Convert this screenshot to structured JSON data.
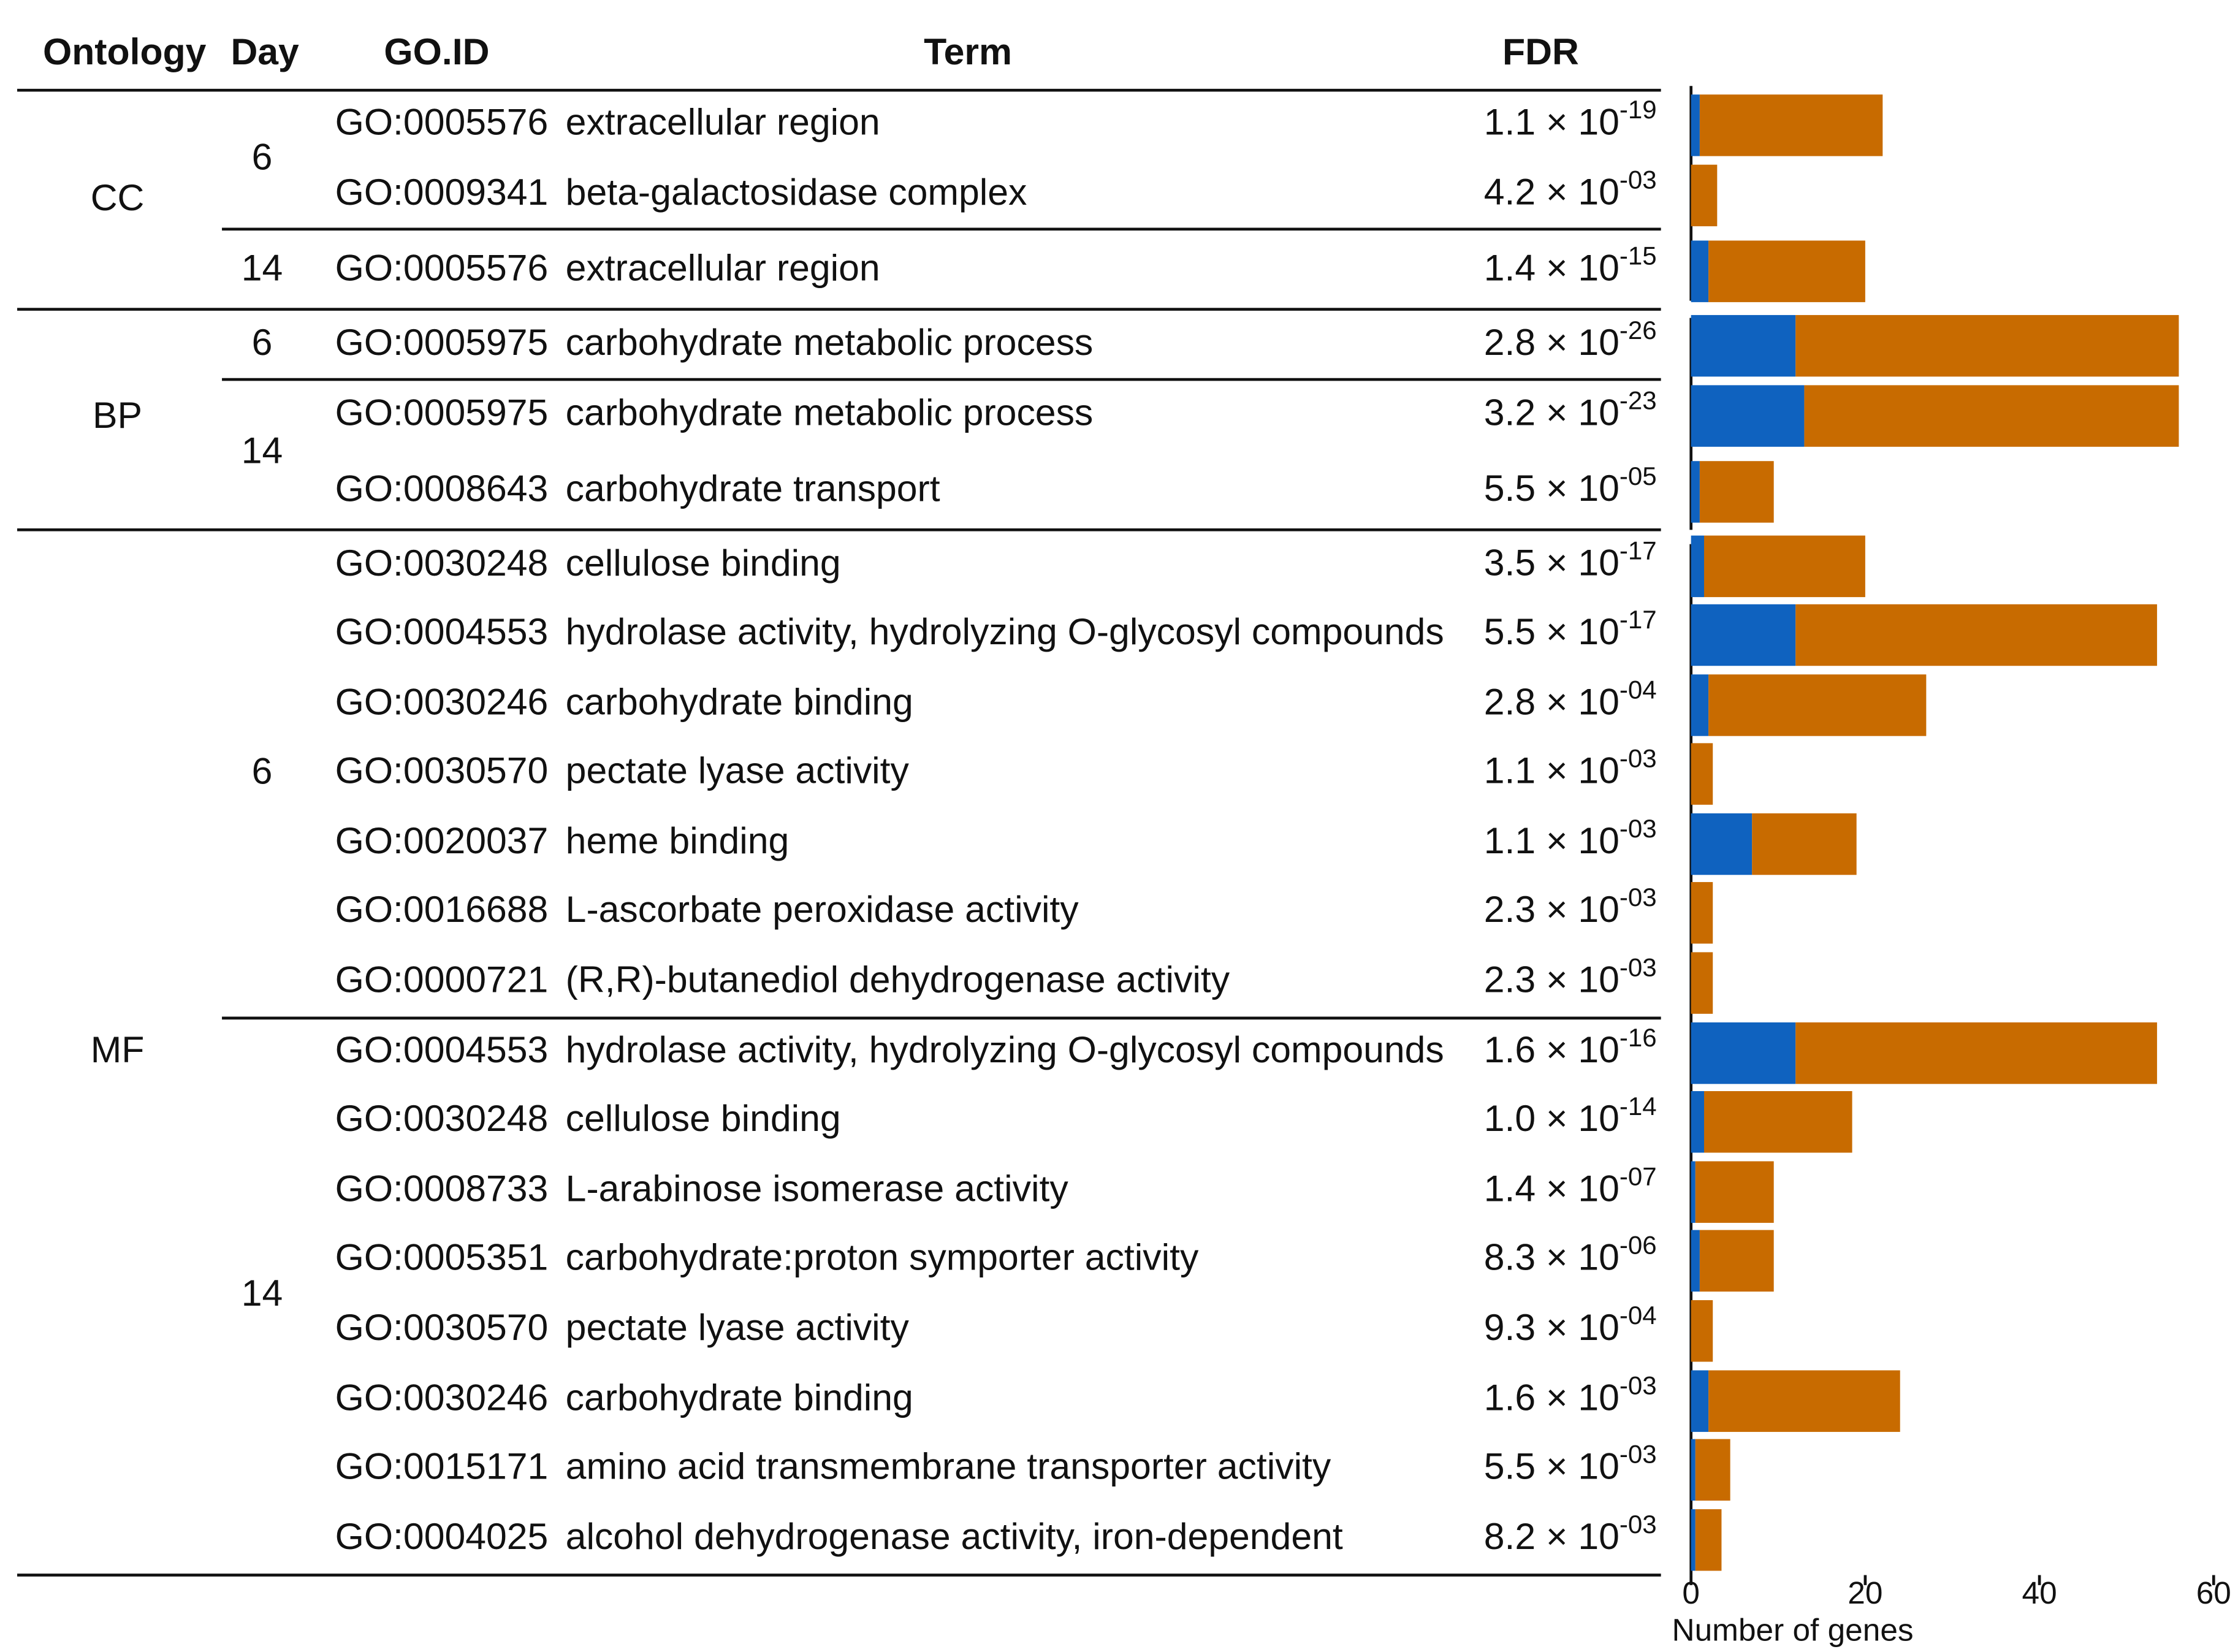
{
  "table": {
    "columns": [
      "Ontology",
      "Day",
      "GO.ID",
      "Term",
      "FDR"
    ],
    "groups": [
      {
        "ontology": "CC",
        "days": [
          {
            "day": "6",
            "rows": [
              [
                "GO:0005576",
                "extracellular region",
                "1.1 × 10",
                "-19"
              ],
              [
                "GO:0009341",
                "beta-galactosidase complex",
                "4.2 × 10",
                "-03"
              ]
            ]
          },
          {
            "day": "14",
            "rows": [
              [
                "GO:0005576",
                "extracellular region",
                "1.4 × 10",
                "-15"
              ]
            ]
          }
        ]
      },
      {
        "ontology": "BP",
        "days": [
          {
            "day": "6",
            "rows": [
              [
                "GO:0005975",
                "carbohydrate metabolic process",
                "2.8 × 10",
                "-26"
              ]
            ]
          },
          {
            "day": "14",
            "rows": [
              [
                "GO:0005975",
                "carbohydrate metabolic process",
                "3.2 × 10",
                "-23"
              ],
              [
                "GO:0008643",
                "carbohydrate transport",
                "5.5 × 10",
                "-05"
              ]
            ]
          }
        ]
      },
      {
        "ontology": "MF",
        "days": [
          {
            "day": "6",
            "rows": [
              [
                "GO:0030248",
                "cellulose binding",
                "3.5 × 10",
                "-17"
              ],
              [
                "GO:0004553",
                "hydrolase activity, hydrolyzing O-glycosyl compounds",
                "5.5 × 10",
                "-17"
              ],
              [
                "GO:0030246",
                "carbohydrate binding",
                "2.8 × 10",
                "-04"
              ],
              [
                "GO:0030570",
                "pectate lyase activity",
                "1.1 × 10",
                "-03"
              ],
              [
                "GO:0020037",
                "heme binding",
                "1.1 × 10",
                "-03"
              ],
              [
                "GO:0016688",
                "L-ascorbate peroxidase activity",
                "2.3 × 10",
                "-03"
              ],
              [
                "GO:0000721",
                "(R,R)-butanediol dehydrogenase activity",
                "2.3 × 10",
                "-03"
              ]
            ]
          },
          {
            "day": "14",
            "rows": [
              [
                "GO:0004553",
                "hydrolase activity, hydrolyzing O-glycosyl compounds",
                "1.6 × 10",
                "-16"
              ],
              [
                "GO:0030248",
                "cellulose binding",
                "1.0 × 10",
                "-14"
              ],
              [
                "GO:0008733",
                "L-arabinose isomerase activity",
                "1.4 × 10",
                "-07"
              ],
              [
                "GO:0005351",
                "carbohydrate:proton symporter activity",
                "8.3 × 10",
                "-06"
              ],
              [
                "GO:0030570",
                "pectate lyase activity",
                "9.3 × 10",
                "-04"
              ],
              [
                "GO:0030246",
                "carbohydrate binding",
                "1.6 × 10",
                "-03"
              ],
              [
                "GO:0015171",
                "amino acid transmembrane transporter activity",
                "5.5 × 10",
                "-03"
              ],
              [
                "GO:0004025",
                "alcohol dehydrogenase activity, iron-dependent",
                "8.2 × 10",
                "-03"
              ]
            ]
          }
        ]
      }
    ]
  },
  "chart_data": {
    "type": "bar",
    "orientation": "horizontal",
    "stacked": true,
    "xlabel": "Number of genes",
    "xlim": [
      0,
      60
    ],
    "xticks": [
      0,
      20,
      40,
      60
    ],
    "series": [
      {
        "color": "#0f62bf",
        "values": [
          1,
          0,
          2,
          12,
          13,
          1,
          1.5,
          12,
          2,
          0,
          7,
          0,
          0,
          12,
          1.5,
          0.5,
          1,
          0,
          2,
          0.5,
          0.5
        ]
      },
      {
        "color": "#c86b00",
        "values": [
          21,
          3,
          18,
          44,
          43,
          8.5,
          18.5,
          41.5,
          25,
          2.5,
          12,
          2.5,
          2.5,
          41.5,
          17,
          9,
          8.5,
          2.5,
          22,
          4,
          3
        ]
      }
    ]
  }
}
